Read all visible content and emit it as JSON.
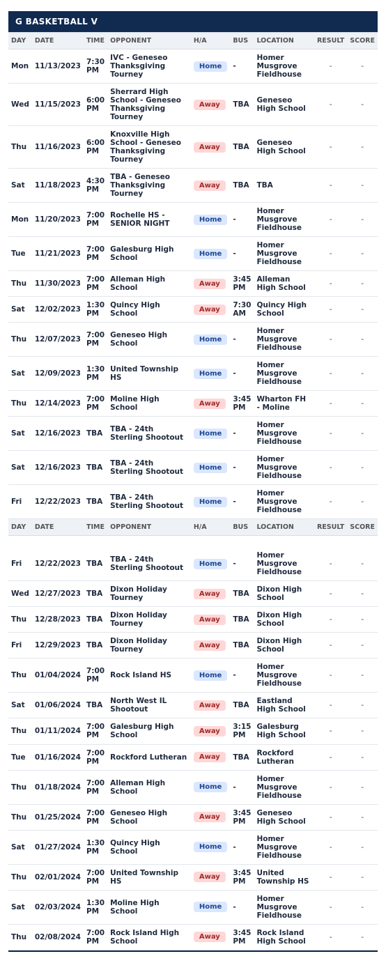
{
  "title": "G BASKETBALL V",
  "columns": {
    "day": "DAY",
    "date": "DATE",
    "time": "TIME",
    "opponent": "OPPONENT",
    "ha": "H/A",
    "bus": "BUS",
    "location": "LOCATION",
    "result": "RESULT",
    "score": "SCORE"
  },
  "badges": {
    "home": "Home",
    "away": "Away"
  },
  "colors": {
    "title_bg": "#102a50",
    "header_bg": "#eef1f5",
    "home_bg": "#dbe7ff",
    "home_fg": "#1c4890",
    "away_bg": "#ffd7d7",
    "away_fg": "#a02b2b"
  },
  "games1": [
    {
      "day": "Mon",
      "date": "11/13/2023",
      "time": "7:30 PM",
      "opponent": "IVC - Geneseo Thanksgiving Tourney",
      "ha": "home",
      "bus": "-",
      "location": "Homer Musgrove Fieldhouse",
      "result": "-",
      "score": "-"
    },
    {
      "day": "Wed",
      "date": "11/15/2023",
      "time": "6:00 PM",
      "opponent": "Sherrard High School - Geneseo Thanksgiving Tourney",
      "ha": "away",
      "bus": "TBA",
      "location": "Geneseo High School",
      "result": "-",
      "score": "-"
    },
    {
      "day": "Thu",
      "date": "11/16/2023",
      "time": "6:00 PM",
      "opponent": "Knoxville High School - Geneseo Thanksgiving Tourney",
      "ha": "away",
      "bus": "TBA",
      "location": "Geneseo High School",
      "result": "-",
      "score": "-"
    },
    {
      "day": "Sat",
      "date": "11/18/2023",
      "time": "4:30 PM",
      "opponent": "TBA - Geneseo Thanksgiving Tourney",
      "ha": "away",
      "bus": "TBA",
      "location": "TBA",
      "result": "-",
      "score": "-"
    },
    {
      "day": "Mon",
      "date": "11/20/2023",
      "time": "7:00 PM",
      "opponent": "Rochelle HS - SENIOR NIGHT",
      "ha": "home",
      "bus": "-",
      "location": "Homer Musgrove Fieldhouse",
      "result": "-",
      "score": "-"
    },
    {
      "day": "Tue",
      "date": "11/21/2023",
      "time": "7:00 PM",
      "opponent": "Galesburg High School",
      "ha": "home",
      "bus": "-",
      "location": "Homer Musgrove Fieldhouse",
      "result": "-",
      "score": "-"
    },
    {
      "day": "Thu",
      "date": "11/30/2023",
      "time": "7:00 PM",
      "opponent": "Alleman High School",
      "ha": "away",
      "bus": "3:45 PM",
      "location": "Alleman High School",
      "result": "-",
      "score": "-"
    },
    {
      "day": "Sat",
      "date": "12/02/2023",
      "time": "1:30 PM",
      "opponent": "Quincy High School",
      "ha": "away",
      "bus": "7:30 AM",
      "location": "Quincy High School",
      "result": "-",
      "score": "-"
    },
    {
      "day": "Thu",
      "date": "12/07/2023",
      "time": "7:00 PM",
      "opponent": "Geneseo High School",
      "ha": "home",
      "bus": "-",
      "location": "Homer Musgrove Fieldhouse",
      "result": "-",
      "score": "-"
    },
    {
      "day": "Sat",
      "date": "12/09/2023",
      "time": "1:30 PM",
      "opponent": "United Township HS",
      "ha": "home",
      "bus": "-",
      "location": "Homer Musgrove Fieldhouse",
      "result": "-",
      "score": "-"
    },
    {
      "day": "Thu",
      "date": "12/14/2023",
      "time": "7:00 PM",
      "opponent": "Moline High School",
      "ha": "away",
      "bus": "3:45 PM",
      "location": "Wharton FH - Moline",
      "result": "-",
      "score": "-"
    },
    {
      "day": "Sat",
      "date": "12/16/2023",
      "time": "TBA",
      "opponent": "TBA - 24th Sterling Shootout",
      "ha": "home",
      "bus": "-",
      "location": "Homer Musgrove Fieldhouse",
      "result": "-",
      "score": "-"
    },
    {
      "day": "Sat",
      "date": "12/16/2023",
      "time": "TBA",
      "opponent": "TBA - 24th Sterling Shootout",
      "ha": "home",
      "bus": "-",
      "location": "Homer Musgrove Fieldhouse",
      "result": "-",
      "score": "-"
    },
    {
      "day": "Fri",
      "date": "12/22/2023",
      "time": "TBA",
      "opponent": "TBA - 24th Sterling Shootout",
      "ha": "home",
      "bus": "-",
      "location": "Homer Musgrove Fieldhouse",
      "result": "-",
      "score": "-"
    }
  ],
  "games2": [
    {
      "day": "Fri",
      "date": "12/22/2023",
      "time": "TBA",
      "opponent": "TBA - 24th Sterling Shootout",
      "ha": "home",
      "bus": "-",
      "location": "Homer Musgrove Fieldhouse",
      "result": "-",
      "score": "-"
    },
    {
      "day": "Wed",
      "date": "12/27/2023",
      "time": "TBA",
      "opponent": "Dixon Holiday Tourney",
      "ha": "away",
      "bus": "TBA",
      "location": "Dixon High School",
      "result": "-",
      "score": "-"
    },
    {
      "day": "Thu",
      "date": "12/28/2023",
      "time": "TBA",
      "opponent": "Dixon Holiday Tourney",
      "ha": "away",
      "bus": "TBA",
      "location": "Dixon High School",
      "result": "-",
      "score": "-"
    },
    {
      "day": "Fri",
      "date": "12/29/2023",
      "time": "TBA",
      "opponent": "Dixon Holiday Tourney",
      "ha": "away",
      "bus": "TBA",
      "location": "Dixon High School",
      "result": "-",
      "score": "-"
    },
    {
      "day": "Thu",
      "date": "01/04/2024",
      "time": "7:00 PM",
      "opponent": "Rock Island HS",
      "ha": "home",
      "bus": "-",
      "location": "Homer Musgrove Fieldhouse",
      "result": "-",
      "score": "-"
    },
    {
      "day": "Sat",
      "date": "01/06/2024",
      "time": "TBA",
      "opponent": "North West IL Shootout",
      "ha": "away",
      "bus": "TBA",
      "location": "Eastland High School",
      "result": "-",
      "score": "-"
    },
    {
      "day": "Thu",
      "date": "01/11/2024",
      "time": "7:00 PM",
      "opponent": "Galesburg High School",
      "ha": "away",
      "bus": "3:15 PM",
      "location": "Galesburg High School",
      "result": "-",
      "score": "-"
    },
    {
      "day": "Tue",
      "date": "01/16/2024",
      "time": "7:00 PM",
      "opponent": "Rockford Lutheran",
      "ha": "away",
      "bus": "TBA",
      "location": "Rockford Lutheran",
      "result": "-",
      "score": "-"
    },
    {
      "day": "Thu",
      "date": "01/18/2024",
      "time": "7:00 PM",
      "opponent": "Alleman High School",
      "ha": "home",
      "bus": "-",
      "location": "Homer Musgrove Fieldhouse",
      "result": "-",
      "score": "-"
    },
    {
      "day": "Thu",
      "date": "01/25/2024",
      "time": "7:00 PM",
      "opponent": "Geneseo High School",
      "ha": "away",
      "bus": "3:45 PM",
      "location": "Geneseo High School",
      "result": "-",
      "score": "-"
    },
    {
      "day": "Sat",
      "date": "01/27/2024",
      "time": "1:30 PM",
      "opponent": "Quincy High School",
      "ha": "home",
      "bus": "-",
      "location": "Homer Musgrove Fieldhouse",
      "result": "-",
      "score": "-"
    },
    {
      "day": "Thu",
      "date": "02/01/2024",
      "time": "7:00 PM",
      "opponent": "United Township HS",
      "ha": "away",
      "bus": "3:45 PM",
      "location": "United Township HS",
      "result": "-",
      "score": "-"
    },
    {
      "day": "Sat",
      "date": "02/03/2024",
      "time": "1:30 PM",
      "opponent": "Moline High School",
      "ha": "home",
      "bus": "-",
      "location": "Homer Musgrove Fieldhouse",
      "result": "-",
      "score": "-"
    },
    {
      "day": "Thu",
      "date": "02/08/2024",
      "time": "7:00 PM",
      "opponent": "Rock Island High School",
      "ha": "away",
      "bus": "3:45 PM",
      "location": "Rock Island High School",
      "result": "-",
      "score": "-"
    }
  ]
}
